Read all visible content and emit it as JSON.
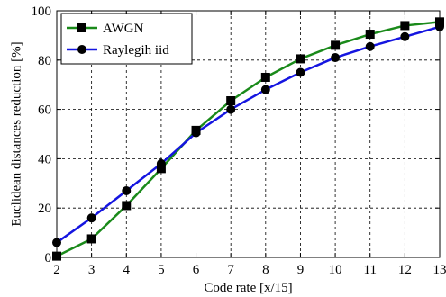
{
  "chart_data": {
    "type": "line",
    "title": "",
    "xlabel": "Code rate [x/15]",
    "ylabel": "Euclidean distances reduction [%]",
    "xlim": [
      2,
      13
    ],
    "ylim": [
      0,
      100
    ],
    "x_ticks": [
      2,
      3,
      4,
      5,
      6,
      7,
      8,
      9,
      10,
      11,
      12,
      13
    ],
    "y_ticks": [
      0,
      20,
      40,
      60,
      80,
      100
    ],
    "grid": true,
    "legend_position": "top-left",
    "x": [
      2,
      3,
      4,
      5,
      6,
      7,
      8,
      9,
      10,
      11,
      12,
      13
    ],
    "series": [
      {
        "name": "AWGN",
        "color": "#1a8a1a",
        "marker": "square",
        "values": [
          0.5,
          7.5,
          21,
          36,
          51.5,
          63.5,
          73,
          80.5,
          86,
          90.5,
          94,
          95.5
        ]
      },
      {
        "name": "Raylegih iid",
        "color": "#1515e0",
        "marker": "circle",
        "values": [
          6,
          16,
          27,
          38,
          50.5,
          60,
          68,
          75,
          81,
          85.5,
          89.5,
          93.5
        ]
      }
    ]
  }
}
